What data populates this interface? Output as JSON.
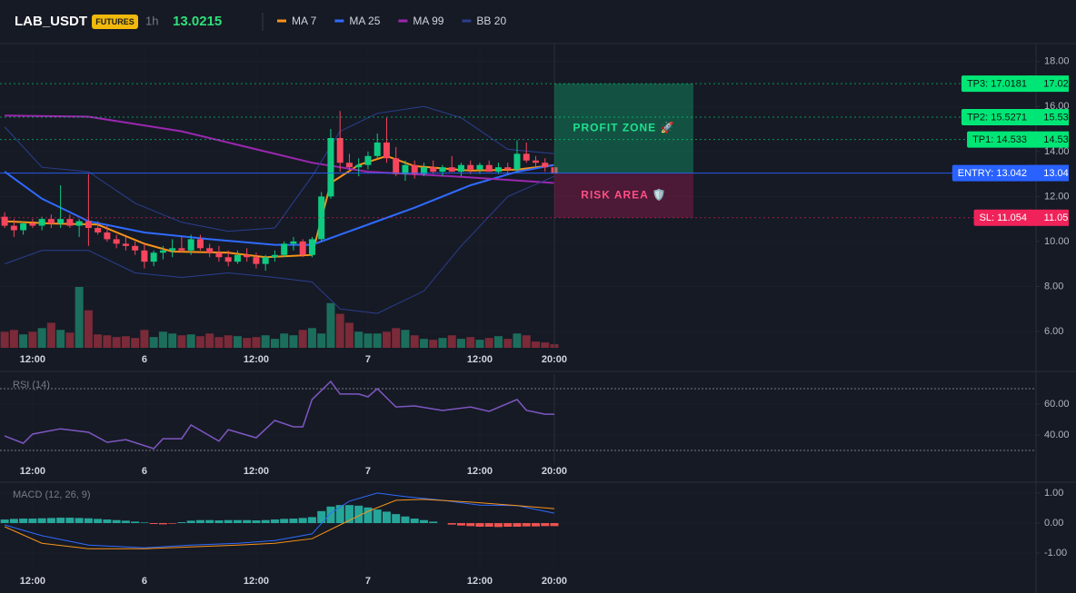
{
  "header": {
    "symbol": "LAB_USDT",
    "badge": "FUTURES",
    "interval": "1h",
    "price": "13.0215"
  },
  "chart_data": [
    {
      "type": "candlestick",
      "x": [
        0,
        1,
        2,
        3,
        4,
        5,
        6,
        7,
        8,
        9,
        10,
        11,
        12,
        13,
        14,
        15,
        16,
        17,
        18,
        19,
        20,
        21,
        22,
        23,
        24,
        25,
        26,
        27,
        28,
        29,
        30,
        31,
        32,
        33,
        34,
        35,
        36,
        37,
        38,
        39,
        40,
        41,
        42,
        43,
        44,
        45,
        46,
        47,
        48,
        49,
        50,
        51,
        52,
        53,
        54,
        55,
        56,
        57,
        58,
        59
      ],
      "open": [
        11.1,
        10.7,
        10.5,
        10.8,
        10.7,
        11.0,
        10.8,
        11.0,
        10.7,
        10.9,
        10.6,
        10.4,
        10.1,
        9.9,
        9.8,
        9.6,
        9.1,
        9.5,
        9.6,
        9.7,
        9.6,
        10.1,
        9.7,
        9.5,
        9.3,
        9.1,
        9.4,
        9.3,
        9.0,
        9.3,
        9.4,
        9.9,
        10.0,
        9.4,
        10.1,
        12.0,
        14.6,
        13.5,
        13.3,
        13.4,
        13.8,
        14.4,
        13.7,
        13.0,
        13.4,
        13.0,
        13.3,
        13.1,
        13.3,
        13.1,
        13.4,
        13.2,
        13.4,
        13.1,
        13.3,
        13.2,
        13.9,
        13.6,
        13.5,
        13.3
      ],
      "high": [
        11.3,
        11.0,
        10.9,
        11.0,
        11.1,
        11.2,
        12.5,
        11.2,
        11.0,
        13.0,
        10.9,
        10.7,
        10.3,
        10.2,
        10.0,
        9.9,
        9.6,
        9.8,
        10.1,
        10.2,
        10.3,
        10.3,
        9.9,
        9.8,
        9.6,
        9.6,
        9.7,
        9.5,
        9.4,
        9.6,
        10.0,
        10.2,
        10.1,
        10.2,
        12.2,
        15.0,
        15.8,
        13.9,
        13.7,
        14.0,
        14.8,
        15.5,
        14.2,
        13.6,
        13.6,
        13.5,
        13.6,
        13.4,
        13.8,
        13.5,
        13.6,
        13.5,
        13.6,
        13.5,
        13.5,
        14.5,
        14.4,
        13.8,
        13.7,
        13.5
      ],
      "low": [
        10.6,
        10.2,
        10.3,
        10.6,
        10.5,
        10.6,
        10.6,
        10.6,
        10.2,
        9.8,
        10.3,
        10.0,
        9.7,
        9.6,
        9.4,
        8.8,
        8.9,
        9.2,
        9.3,
        9.5,
        9.4,
        9.6,
        9.3,
        9.1,
        8.9,
        9.0,
        9.1,
        8.8,
        8.7,
        9.1,
        9.3,
        9.6,
        9.3,
        9.3,
        10.0,
        11.9,
        13.1,
        13.1,
        12.9,
        13.2,
        13.7,
        13.5,
        12.9,
        12.7,
        12.8,
        12.9,
        13.0,
        12.9,
        13.1,
        12.9,
        13.0,
        13.0,
        13.1,
        13.0,
        13.0,
        13.1,
        13.5,
        13.3,
        13.1,
        13.0
      ],
      "close": [
        10.7,
        10.5,
        10.8,
        10.7,
        11.0,
        10.8,
        11.0,
        10.7,
        10.9,
        10.6,
        10.4,
        10.1,
        9.9,
        9.8,
        9.6,
        9.1,
        9.5,
        9.6,
        9.7,
        9.6,
        10.1,
        9.7,
        9.5,
        9.3,
        9.1,
        9.4,
        9.3,
        9.0,
        9.3,
        9.4,
        9.9,
        10.0,
        9.4,
        10.1,
        12.0,
        14.6,
        13.5,
        13.3,
        13.4,
        13.8,
        14.4,
        13.7,
        13.0,
        13.4,
        13.0,
        13.3,
        13.1,
        13.3,
        13.1,
        13.4,
        13.2,
        13.4,
        13.1,
        13.3,
        13.2,
        13.9,
        13.6,
        13.5,
        13.3,
        13.02
      ],
      "volume": [
        18,
        20,
        15,
        18,
        22,
        28,
        20,
        17,
        68,
        42,
        15,
        14,
        12,
        13,
        11,
        20,
        12,
        18,
        16,
        14,
        15,
        13,
        16,
        12,
        14,
        13,
        11,
        12,
        14,
        10,
        16,
        14,
        20,
        22,
        16,
        50,
        38,
        28,
        18,
        16,
        16,
        18,
        22,
        20,
        14,
        10,
        9,
        11,
        14,
        10,
        12,
        9,
        11,
        13,
        10,
        16,
        14,
        7,
        6,
        4
      ],
      "up_color": "#0ecb81",
      "down_color": "#f6465d",
      "volume_colors": [
        "#1c6e5c",
        "#7a2a38"
      ],
      "series": [
        {
          "name": "MA 7",
          "color": "#f7931a",
          "x": [
            0,
            5,
            10,
            15,
            18,
            24,
            28,
            33,
            35,
            38,
            41,
            44,
            50,
            55,
            59
          ],
          "values": [
            10.9,
            10.8,
            10.75,
            9.9,
            9.55,
            9.5,
            9.3,
            9.4,
            12.6,
            13.4,
            13.8,
            13.35,
            13.15,
            13.2,
            13.4
          ]
        },
        {
          "name": "MA 25",
          "color": "#2f6bff",
          "x": [
            0,
            4,
            9,
            15,
            22,
            29,
            33,
            38,
            44,
            50,
            55,
            59
          ],
          "values": [
            13.1,
            11.9,
            10.9,
            10.4,
            10.1,
            9.85,
            9.85,
            10.6,
            11.5,
            12.5,
            13.1,
            13.4
          ]
        },
        {
          "name": "MA 99",
          "color": "#9c27b0",
          "x": [
            0,
            9,
            19,
            27,
            33,
            39,
            48,
            59
          ],
          "values": [
            15.6,
            15.55,
            14.9,
            14.1,
            13.5,
            13.1,
            12.9,
            12.6
          ]
        },
        {
          "name": "BB 20",
          "color": "#2a3f8f",
          "x": [
            0,
            4,
            9,
            14,
            19,
            24,
            29,
            33,
            36,
            40,
            45,
            49,
            54,
            59
          ],
          "values": [
            15.1,
            13.3,
            13.1,
            11.7,
            10.85,
            10.45,
            10.6,
            12.9,
            14.9,
            15.7,
            16.0,
            15.5,
            14.1,
            13.9
          ],
          "lower": [
            9.0,
            9.6,
            9.6,
            8.6,
            8.4,
            8.6,
            8.4,
            8.2,
            7.0,
            6.8,
            7.8,
            9.8,
            12.0,
            12.9
          ]
        }
      ],
      "xlim": [
        -0.5,
        110.7
      ],
      "xticks": [
        {
          "value": 3,
          "label": "12:00"
        },
        {
          "value": 15,
          "label": "6"
        },
        {
          "value": 27,
          "label": "12:00"
        },
        {
          "value": 39,
          "label": "7"
        },
        {
          "value": 51,
          "label": "12:00"
        },
        {
          "value": 59,
          "label": "20:00"
        }
      ],
      "ylim": [
        5.27,
        18.8
      ],
      "yticks": [
        {
          "value": 6,
          "label": "6.00"
        },
        {
          "value": 8,
          "label": "8.00"
        },
        {
          "value": 10,
          "label": "10.00"
        },
        {
          "value": 12,
          "label": "12.00"
        },
        {
          "value": 14,
          "label": "14.00"
        },
        {
          "value": 16,
          "label": "16.00"
        },
        {
          "value": 18,
          "label": "18.00"
        }
      ],
      "levels": [
        {
          "label": "TP3: 17.0181",
          "value": 17.0181,
          "value_label": "17.02",
          "color": "#00e676",
          "text_color": "#0b1a10",
          "style": "dotted"
        },
        {
          "label": "TP2: 15.5271",
          "value": 15.5271,
          "value_label": "15.53",
          "color": "#00e676",
          "text_color": "#0b1a10",
          "style": "dotted"
        },
        {
          "label": "TP1: 14.533",
          "value": 14.533,
          "value_label": "14.53",
          "color": "#00e676",
          "text_color": "#0b1a10",
          "style": "dotted"
        },
        {
          "label": "ENTRY: 13.042",
          "value": 13.042,
          "value_label": "13.04",
          "color": "#2962ff",
          "text_color": "#ffffff",
          "style": "solid"
        },
        {
          "label": "SL: 11.054",
          "value": 11.054,
          "value_label": "11.05",
          "color": "#f0225a",
          "text_color": "#ffffff",
          "style": "dotted"
        }
      ],
      "zones": [
        {
          "label": "PROFIT ZONE 🚀",
          "color": "#0ecb81",
          "text_color": "#1fe08f"
        },
        {
          "label": "RISK AREA 🛡️",
          "color": "#c2185b",
          "text_color": "#ff4f86"
        }
      ]
    },
    {
      "type": "line",
      "label": "RSI (14)",
      "series": [
        {
          "color": "#7e57c2",
          "x": [
            0,
            2,
            3,
            6,
            9,
            11,
            13,
            16,
            17,
            19,
            20,
            23,
            24,
            27,
            29,
            31,
            32,
            33,
            35,
            36,
            38,
            39,
            40,
            42,
            44,
            47,
            50,
            52,
            55,
            56,
            58,
            59
          ],
          "values": [
            39.4,
            34.7,
            40.6,
            44,
            41.8,
            35.3,
            37,
            31.2,
            37.6,
            37.6,
            46.5,
            36,
            43.5,
            38.2,
            49.4,
            45.3,
            45.3,
            63,
            74.7,
            66.5,
            66.5,
            64.7,
            70,
            58.2,
            58.8,
            55.9,
            58.2,
            55.3,
            63,
            56,
            53.5,
            53.5
          ]
        }
      ],
      "bands": [
        30,
        70
      ],
      "xlim": [
        -0.5,
        110.7
      ],
      "xticks": [
        {
          "value": 3,
          "label": "12:00"
        },
        {
          "value": 15,
          "label": "6"
        },
        {
          "value": 27,
          "label": "12:00"
        },
        {
          "value": 39,
          "label": "7"
        },
        {
          "value": 51,
          "label": "12:00"
        },
        {
          "value": 59,
          "label": "20:00"
        }
      ],
      "ylim": [
        21.8,
        79.4
      ],
      "yticks": [
        {
          "value": 40,
          "label": "40.00"
        },
        {
          "value": 60,
          "label": "60.00"
        }
      ]
    },
    {
      "type": "macd",
      "label": "MACD (12, 26, 9)",
      "x": [
        0,
        1,
        2,
        3,
        4,
        5,
        6,
        7,
        8,
        9,
        10,
        11,
        12,
        13,
        14,
        15,
        16,
        17,
        18,
        19,
        20,
        21,
        22,
        23,
        24,
        25,
        26,
        27,
        28,
        29,
        30,
        31,
        32,
        33,
        34,
        35,
        36,
        37,
        38,
        39,
        40,
        41,
        42,
        43,
        44,
        45,
        46,
        47,
        48,
        49,
        50,
        51,
        52,
        53,
        54,
        55,
        56,
        57,
        58,
        59
      ],
      "histogram": [
        0.12,
        0.14,
        0.15,
        0.15,
        0.16,
        0.17,
        0.18,
        0.18,
        0.17,
        0.16,
        0.14,
        0.12,
        0.1,
        0.08,
        0.05,
        0.02,
        -0.03,
        -0.04,
        -0.02,
        0.03,
        0.08,
        0.1,
        0.1,
        0.09,
        0.1,
        0.1,
        0.1,
        0.09,
        0.1,
        0.12,
        0.14,
        0.15,
        0.17,
        0.2,
        0.4,
        0.55,
        0.6,
        0.6,
        0.58,
        0.52,
        0.45,
        0.38,
        0.3,
        0.22,
        0.15,
        0.1,
        0.05,
        0.0,
        -0.05,
        -0.08,
        -0.1,
        -0.12,
        -0.12,
        -0.13,
        -0.12,
        -0.12,
        -0.11,
        -0.11,
        -0.1,
        -0.1
      ],
      "histogram_colors": [
        "#26a69a",
        "#ef5350"
      ],
      "series": [
        {
          "color": "#2f6bff",
          "x": [
            0,
            4,
            9,
            15,
            20,
            25,
            29,
            33,
            35,
            37,
            40,
            43,
            47,
            51,
            55,
            59
          ],
          "values": [
            -0.06,
            -0.42,
            -0.73,
            -0.82,
            -0.73,
            -0.67,
            -0.58,
            -0.36,
            0.33,
            0.73,
            1.0,
            0.88,
            0.76,
            0.6,
            0.58,
            0.33
          ]
        },
        {
          "color": "#f7931a",
          "x": [
            0,
            4,
            9,
            15,
            20,
            25,
            29,
            33,
            36,
            39,
            42,
            45,
            50,
            55,
            59
          ],
          "values": [
            -0.12,
            -0.67,
            -0.85,
            -0.85,
            -0.79,
            -0.73,
            -0.67,
            -0.52,
            -0.06,
            0.39,
            0.76,
            0.79,
            0.7,
            0.58,
            0.48
          ]
        }
      ],
      "xlim": [
        -0.5,
        110.7
      ],
      "xticks": [
        {
          "value": 3,
          "label": "12:00"
        },
        {
          "value": 15,
          "label": "6"
        },
        {
          "value": 27,
          "label": "12:00"
        },
        {
          "value": 39,
          "label": "7"
        },
        {
          "value": 51,
          "label": "12:00"
        },
        {
          "value": 59,
          "label": "20:00"
        }
      ],
      "ylim": [
        -1.48,
        1.3
      ],
      "yticks": [
        {
          "value": -1,
          "label": "-1.00"
        },
        {
          "value": 0,
          "label": "0.00"
        },
        {
          "value": 1,
          "label": "1.00"
        }
      ]
    }
  ]
}
